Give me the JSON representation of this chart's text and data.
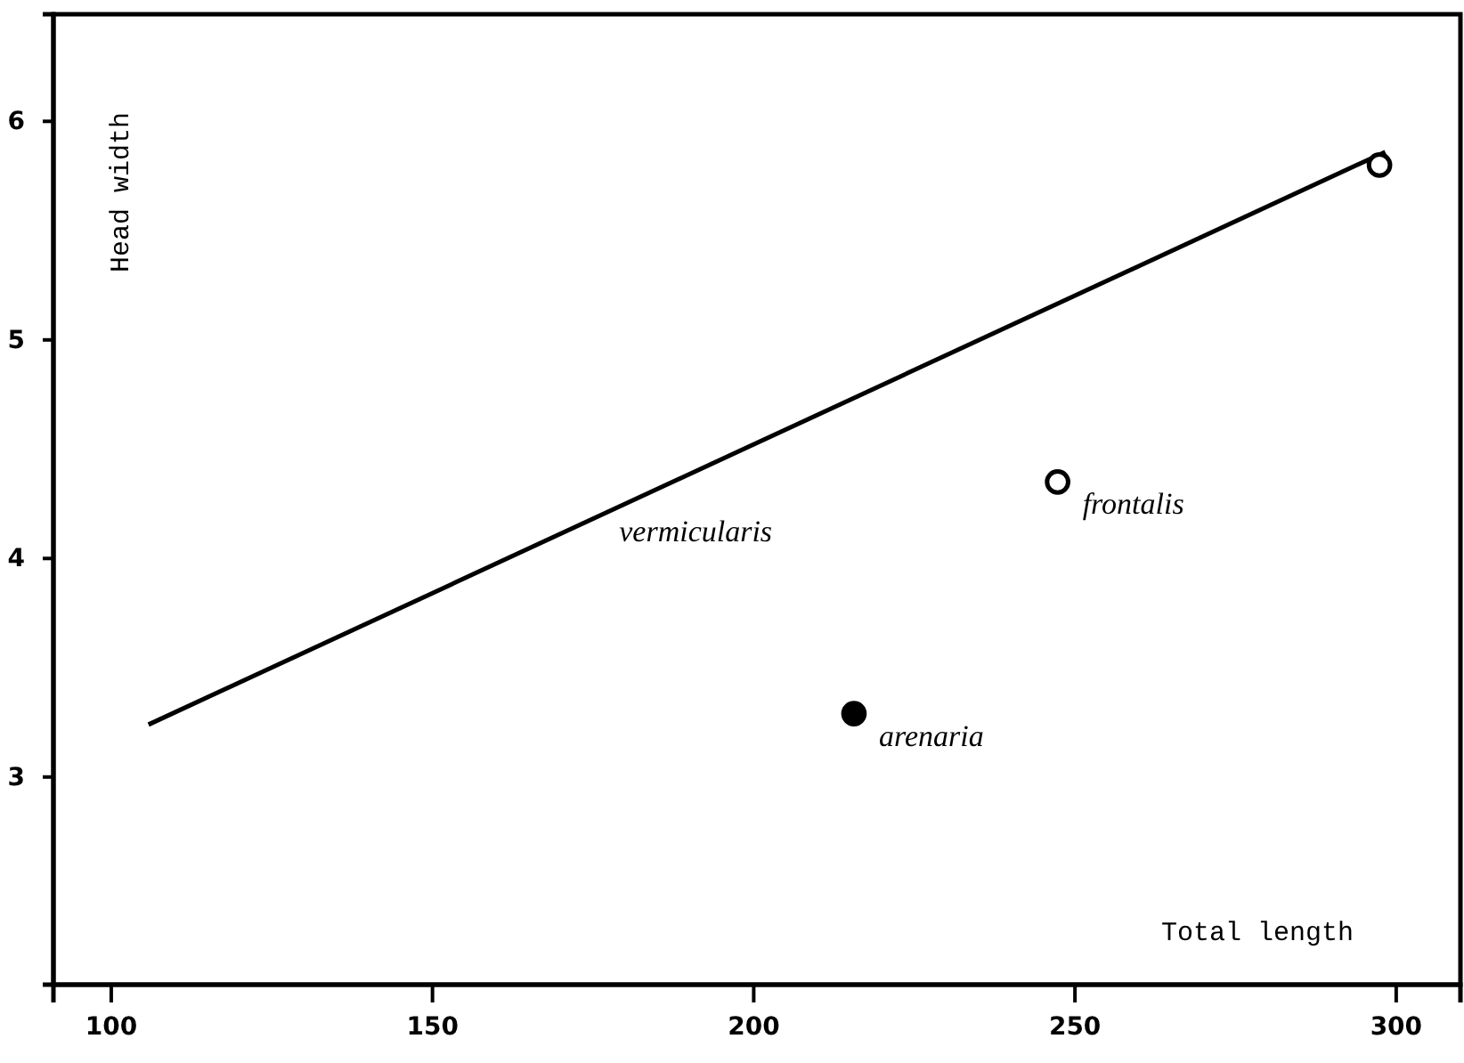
{
  "chart_data": {
    "type": "scatter",
    "xlabel": "Total length",
    "ylabel": "Head width",
    "xlim": [
      91,
      310
    ],
    "xticks": [
      100,
      150,
      200,
      250,
      300
    ],
    "ylim": [
      2.05,
      6.49
    ],
    "yticks": [
      3,
      4,
      5,
      6
    ],
    "marker": "circle",
    "grid": false,
    "legend": false,
    "series": [
      {
        "type": "line",
        "name": "vermicularis",
        "marker": "none",
        "color": "#000000",
        "x": [
          105.8,
          298.3
        ],
        "values": [
          3.24,
          5.86
        ]
      },
      {
        "name": "arenaria",
        "color": "#000000",
        "x": [
          215.6
        ],
        "values": [
          3.29
        ]
      },
      {
        "name": "frontalis",
        "color": "#ffffff",
        "x": [
          247.3
        ],
        "values": [
          4.35
        ]
      },
      {
        "color": "#ffffff",
        "x": [
          297.4
        ],
        "values": [
          5.8
        ]
      }
    ]
  }
}
